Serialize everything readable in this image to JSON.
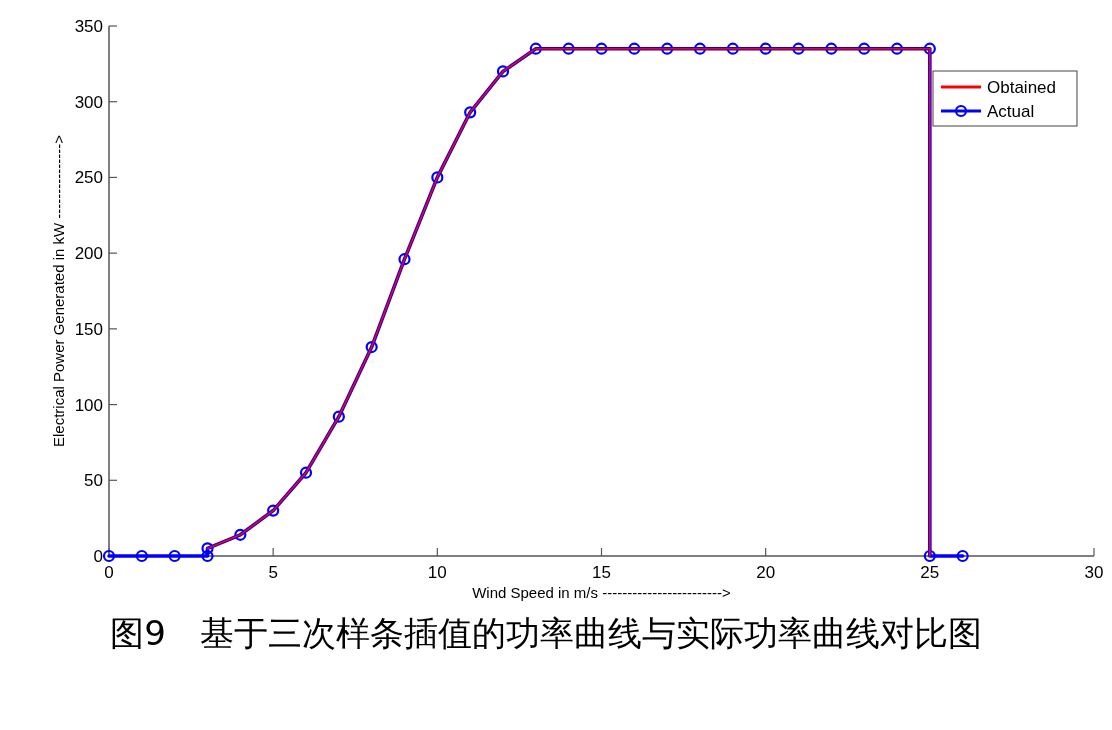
{
  "chart_data": {
    "type": "line",
    "xlabel": "Wind Speed in m/s ------------------------>",
    "ylabel": "Electrical Power Generated in kW --------------->",
    "annotations": [
      "图9　基于三次样条插值的功率曲线与实际功率曲线对比图"
    ],
    "series": [
      {
        "name": "Obtained",
        "color": "#ff0000",
        "marker": "none",
        "x": [
          3,
          4,
          5,
          6,
          7,
          8,
          9,
          10,
          11,
          12,
          13,
          25,
          25
        ],
        "values": [
          5,
          14,
          30,
          55,
          92,
          138,
          196,
          250,
          293,
          320,
          335,
          335,
          0
        ]
      },
      {
        "name": "Actual",
        "color": "#0000ff",
        "marker": "circle",
        "x": [
          0,
          1,
          2,
          3,
          3,
          4,
          5,
          6,
          7,
          8,
          9,
          10,
          11,
          12,
          13,
          14,
          15,
          16,
          17,
          18,
          19,
          20,
          21,
          22,
          23,
          24,
          25,
          25,
          26
        ],
        "values": [
          0,
          0,
          0,
          0,
          5,
          14,
          30,
          55,
          92,
          138,
          196,
          250,
          293,
          320,
          335,
          335,
          335,
          335,
          335,
          335,
          335,
          335,
          335,
          335,
          335,
          335,
          335,
          0,
          0
        ]
      }
    ],
    "xlim": [
      0,
      30
    ],
    "ylim": [
      0,
      350
    ],
    "xticks": [
      0,
      5,
      10,
      15,
      20,
      25,
      30
    ],
    "yticks": [
      0,
      50,
      100,
      150,
      200,
      250,
      300,
      350
    ],
    "grid": false,
    "legend": "top right",
    "line_style": "solid"
  }
}
